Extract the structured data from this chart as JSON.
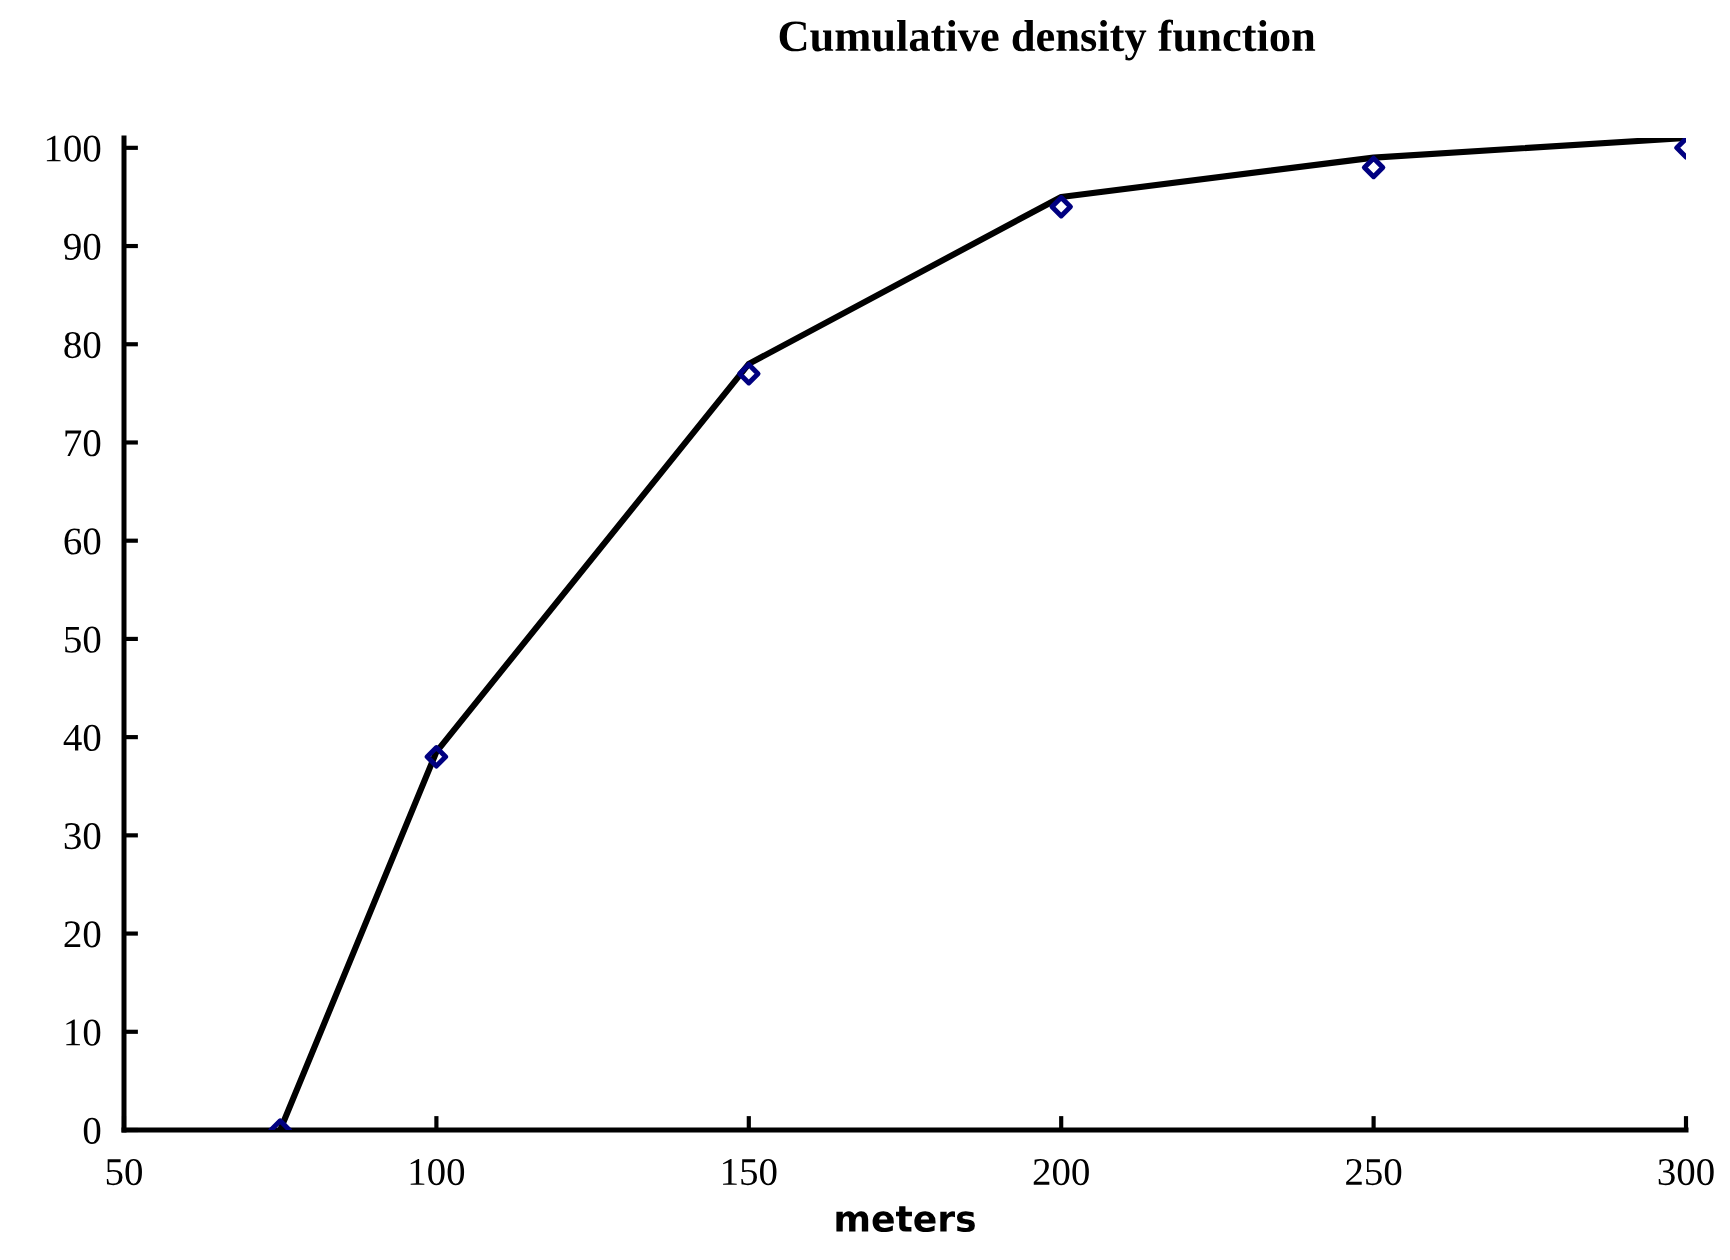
{
  "chart_data": {
    "type": "scatter",
    "title": "Cumulative density function",
    "xlabel": "meters",
    "series": [
      {
        "type": "line",
        "color": "#000000",
        "marker": "none",
        "line_style": "solid",
        "x": [
          75,
          100,
          150,
          200,
          250,
          300
        ],
        "values": [
          0,
          38.5,
          78,
          95,
          99,
          101
        ]
      },
      {
        "color": "#000080",
        "marker": "diamond",
        "x": [
          75,
          100,
          150,
          200,
          250,
          300
        ],
        "values": [
          0,
          38,
          77,
          94,
          98,
          100
        ]
      }
    ],
    "xlim": [
      50,
      300
    ],
    "xticks": [
      50,
      100,
      150,
      200,
      250,
      300
    ],
    "ylim": [
      0,
      101
    ],
    "yticks": [
      0,
      10,
      20,
      30,
      40,
      50,
      60,
      70,
      80,
      90,
      100
    ],
    "grid": false,
    "legend": false
  }
}
